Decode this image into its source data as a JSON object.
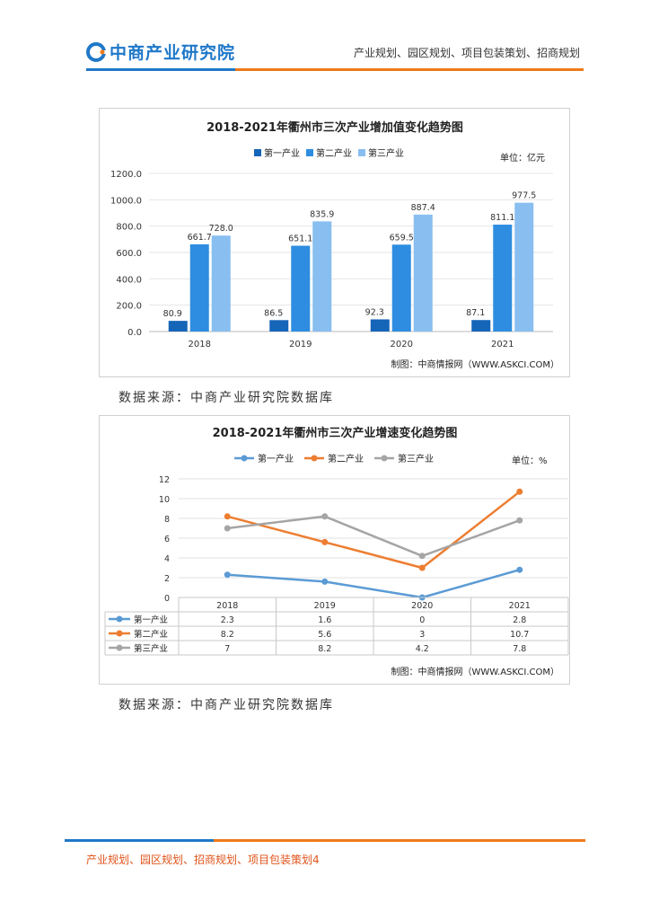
{
  "header": {
    "logo_text": "中商产业研究院",
    "tagline": "产业规划、园区规划、项目包装策划、招商规划"
  },
  "chart1": {
    "title": "2018-2021年衢州市三次产业增加值变化趋势图",
    "unit": "单位：亿元",
    "credit": "制图：中商情报网（WWW.ASKCI.COM）",
    "y_ticks": [
      "0.0",
      "200.0",
      "400.0",
      "600.0",
      "800.0",
      "1000.0",
      "1200.0"
    ],
    "colors": [
      "#1565b8",
      "#2e8de0",
      "#88bef0"
    ]
  },
  "chart2": {
    "title": "2018-2021年衢州市三次产业增速变化趋势图",
    "unit": "单位：%",
    "credit": "制图：中商情报网（WWW.ASKCI.COM）",
    "y_ticks": [
      "0",
      "2",
      "4",
      "6",
      "8",
      "10",
      "12"
    ],
    "colors": [
      "#5b9bd5",
      "#ed7d31",
      "#a5a5a5"
    ],
    "table_rows": [
      {
        "label": "第一产业",
        "values": [
          "2.3",
          "1.6",
          "0",
          "2.8"
        ]
      },
      {
        "label": "第二产业",
        "values": [
          "8.2",
          "5.6",
          "3",
          "10.7"
        ]
      },
      {
        "label": "第三产业",
        "values": [
          "7",
          "8.2",
          "4.2",
          "7.8"
        ]
      }
    ]
  },
  "source1": "数据来源：中商产业研究院数据库",
  "source2": "数据来源：中商产业研究院数据库",
  "footer": {
    "text": "产业规划、园区规划、招商规划、项目包装策划4"
  },
  "chart_data": [
    {
      "type": "bar",
      "title": "2018-2021年衢州市三次产业增加值变化趋势图",
      "categories": [
        "2018",
        "2019",
        "2020",
        "2021"
      ],
      "series": [
        {
          "name": "第一产业",
          "values": [
            80.9,
            86.5,
            92.3,
            87.1
          ],
          "labels": [
            "80.9",
            "86.5",
            "92.3",
            "87.1"
          ]
        },
        {
          "name": "第二产业",
          "values": [
            661.7,
            651.1,
            659.5,
            811.1
          ],
          "labels": [
            "661.7",
            "651.1",
            "659.5",
            "811.1"
          ]
        },
        {
          "name": "第三产业",
          "values": [
            728.0,
            835.9,
            887.4,
            977.5
          ],
          "labels": [
            "728.0",
            "835.9",
            "887.4",
            "977.5"
          ]
        }
      ],
      "ylim": [
        0,
        1200
      ],
      "legend": "top"
    },
    {
      "type": "line",
      "title": "2018-2021年衢州市三次产业增速变化趋势图",
      "categories": [
        "2018",
        "2019",
        "2020",
        "2021"
      ],
      "series": [
        {
          "name": "第一产业",
          "values": [
            2.3,
            1.6,
            0,
            2.8
          ]
        },
        {
          "name": "第二产业",
          "values": [
            8.2,
            5.6,
            3,
            10.7
          ]
        },
        {
          "name": "第三产业",
          "values": [
            7,
            8.2,
            4.2,
            7.8
          ]
        }
      ],
      "ylim": [
        0,
        12
      ],
      "legend": "top"
    }
  ]
}
